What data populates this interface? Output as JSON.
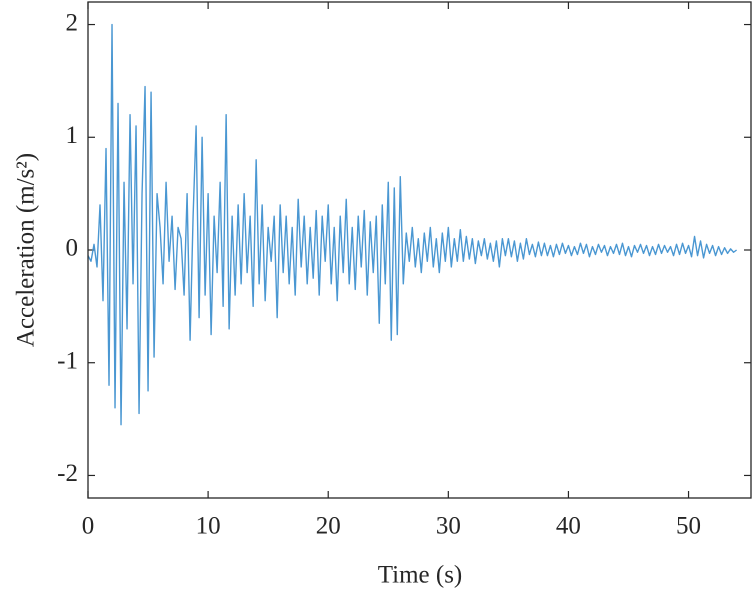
{
  "chart_data": {
    "type": "line",
    "xlabel": "Time (s)",
    "ylabel": "Acceleration (m/s²)",
    "xlim": [
      0,
      55.2
    ],
    "ylim": [
      -2.2,
      2.2
    ],
    "xticks": [
      0,
      10,
      20,
      30,
      40,
      50
    ],
    "yticks": [
      -2,
      -1,
      0,
      1,
      2
    ],
    "grid": false,
    "x": [
      0,
      0.25,
      0.5,
      0.75,
      1,
      1.25,
      1.5,
      1.75,
      2,
      2.25,
      2.5,
      2.75,
      3,
      3.25,
      3.5,
      3.75,
      4,
      4.25,
      4.5,
      4.75,
      5,
      5.25,
      5.5,
      5.75,
      6,
      6.25,
      6.5,
      6.75,
      7,
      7.25,
      7.5,
      7.75,
      8,
      8.25,
      8.5,
      8.75,
      9,
      9.25,
      9.5,
      9.75,
      10,
      10.25,
      10.5,
      10.75,
      11,
      11.25,
      11.5,
      11.75,
      12,
      12.25,
      12.5,
      12.75,
      13,
      13.25,
      13.5,
      13.75,
      14,
      14.25,
      14.5,
      14.75,
      15,
      15.25,
      15.5,
      15.75,
      16,
      16.25,
      16.5,
      16.75,
      17,
      17.25,
      17.5,
      17.75,
      18,
      18.25,
      18.5,
      18.75,
      19,
      19.25,
      19.5,
      19.75,
      20,
      20.25,
      20.5,
      20.75,
      21,
      21.25,
      21.5,
      21.75,
      22,
      22.25,
      22.5,
      22.75,
      23,
      23.25,
      23.5,
      23.75,
      24,
      24.25,
      24.5,
      24.75,
      25,
      25.25,
      25.5,
      25.75,
      26,
      26.25,
      26.5,
      26.75,
      27,
      27.25,
      27.5,
      27.75,
      28,
      28.25,
      28.5,
      28.75,
      29,
      29.25,
      29.5,
      29.75,
      30,
      30.25,
      30.5,
      30.75,
      31,
      31.25,
      31.5,
      31.75,
      32,
      32.25,
      32.5,
      32.75,
      33,
      33.25,
      33.5,
      33.75,
      34,
      34.25,
      34.5,
      34.75,
      35,
      35.25,
      35.5,
      35.75,
      36,
      36.25,
      36.5,
      36.75,
      37,
      37.25,
      37.5,
      37.75,
      38,
      38.25,
      38.5,
      38.75,
      39,
      39.25,
      39.5,
      39.75,
      40,
      40.25,
      40.5,
      40.75,
      41,
      41.25,
      41.5,
      41.75,
      42,
      42.25,
      42.5,
      42.75,
      43,
      43.25,
      43.5,
      43.75,
      44,
      44.25,
      44.5,
      44.75,
      45,
      45.25,
      45.5,
      45.75,
      46,
      46.25,
      46.5,
      46.75,
      47,
      47.25,
      47.5,
      47.75,
      48,
      48.25,
      48.5,
      48.75,
      49,
      49.25,
      49.5,
      49.75,
      50,
      50.25,
      50.5,
      50.75,
      51,
      51.25,
      51.5,
      51.75,
      52,
      52.25,
      52.5,
      52.75,
      53,
      53.25,
      53.5,
      53.75,
      54
    ],
    "series": [
      {
        "color": "#4a97d2",
        "values": [
          -0.05,
          -0.1,
          0.05,
          -0.15,
          0.4,
          -0.45,
          0.9,
          -1.2,
          2.0,
          -1.4,
          1.3,
          -1.55,
          0.6,
          -0.7,
          1.2,
          -0.3,
          1.1,
          -1.45,
          0.5,
          1.45,
          -1.25,
          1.4,
          -0.95,
          0.5,
          0.2,
          -0.3,
          0.6,
          -0.1,
          0.3,
          -0.35,
          0.2,
          0.1,
          -0.4,
          0.5,
          -0.8,
          0.3,
          1.1,
          -0.6,
          1.0,
          -0.4,
          0.5,
          -0.75,
          0.3,
          -0.2,
          0.6,
          -0.5,
          1.2,
          -0.7,
          0.3,
          -0.4,
          0.4,
          -0.3,
          0.5,
          -0.2,
          0.3,
          -0.5,
          0.8,
          -0.3,
          0.4,
          -0.45,
          0.2,
          -0.1,
          0.3,
          -0.6,
          0.4,
          -0.2,
          0.3,
          -0.3,
          0.2,
          -0.4,
          0.45,
          -0.15,
          0.3,
          -0.3,
          0.2,
          -0.25,
          0.35,
          -0.4,
          0.3,
          -0.1,
          0.4,
          -0.3,
          0.2,
          -0.45,
          0.3,
          -0.2,
          0.45,
          -0.3,
          0.2,
          -0.35,
          0.3,
          -0.15,
          0.35,
          -0.4,
          0.25,
          -0.2,
          0.3,
          -0.65,
          0.4,
          -0.3,
          0.6,
          -0.8,
          0.55,
          -0.75,
          0.65,
          -0.3,
          0.15,
          -0.1,
          0.2,
          -0.15,
          0.1,
          -0.2,
          0.15,
          -0.1,
          0.2,
          -0.15,
          0.1,
          -0.2,
          0.15,
          -0.1,
          0.2,
          -0.15,
          0.1,
          -0.1,
          0.18,
          -0.1,
          0.12,
          -0.08,
          0.1,
          -0.12,
          0.08,
          -0.05,
          0.1,
          -0.08,
          0.06,
          -0.1,
          0.08,
          -0.15,
          0.1,
          -0.05,
          0.1,
          -0.06,
          0.08,
          -0.1,
          0.06,
          -0.08,
          0.1,
          -0.04,
          0.05,
          -0.06,
          0.07,
          -0.05,
          0.06,
          -0.05,
          0.04,
          -0.06,
          0.05,
          -0.04,
          0.06,
          -0.03,
          0.04,
          -0.05,
          0.03,
          -0.04,
          0.06,
          -0.03,
          0.05,
          -0.06,
          0.03,
          -0.04,
          0.05,
          -0.02,
          0.04,
          -0.05,
          0.03,
          -0.03,
          0.05,
          -0.04,
          0.06,
          -0.05,
          0.03,
          -0.06,
          0.04,
          -0.02,
          0.05,
          -0.03,
          0.04,
          -0.05,
          0.03,
          -0.04,
          0.05,
          -0.03,
          0.04,
          -0.02,
          0.03,
          -0.05,
          0.05,
          -0.04,
          0.06,
          -0.03,
          0.04,
          -0.06,
          0.12,
          -0.05,
          0.08,
          -0.07,
          0.05,
          -0.03,
          0.04,
          -0.05,
          0.03,
          -0.04,
          0.02,
          -0.03,
          0.01,
          -0.02,
          0
        ]
      }
    ]
  }
}
